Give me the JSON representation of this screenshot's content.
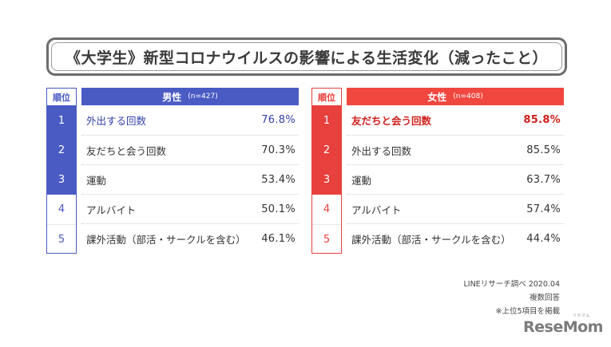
{
  "title": "《大学生》新型コロナウイルスの影響による生活変化（減ったこと）",
  "rank_header": "順位",
  "chart_data": {
    "type": "table",
    "title": "《大学生》新型コロナウイルスの影響による生活変化（減ったこと）",
    "groups": [
      {
        "name": "男性",
        "n": "(n=427)",
        "color": "#4a5bc4",
        "rows": [
          {
            "rank": "1",
            "label": "外出する回数",
            "value": 76.8,
            "display": "76.8%"
          },
          {
            "rank": "2",
            "label": "友だちと会う回数",
            "value": 70.3,
            "display": "70.3%"
          },
          {
            "rank": "3",
            "label": "運動",
            "value": 53.4,
            "display": "53.4%"
          },
          {
            "rank": "4",
            "label": "アルバイト",
            "value": 50.1,
            "display": "50.1%"
          },
          {
            "rank": "5",
            "label": "課外活動（部活・サークルを含む）",
            "value": 46.1,
            "display": "46.1%"
          }
        ]
      },
      {
        "name": "女性",
        "n": "(n=408)",
        "color": "#e8403c",
        "rows": [
          {
            "rank": "1",
            "label": "友だちと会う回数",
            "value": 85.8,
            "display": "85.8%"
          },
          {
            "rank": "2",
            "label": "外出する回数",
            "value": 85.5,
            "display": "85.5%"
          },
          {
            "rank": "3",
            "label": "運動",
            "value": 63.7,
            "display": "63.7%"
          },
          {
            "rank": "4",
            "label": "アルバイト",
            "value": 57.4,
            "display": "57.4%"
          },
          {
            "rank": "5",
            "label": "課外活動（部活・サークルを含む）",
            "value": 44.4,
            "display": "44.4%"
          }
        ]
      }
    ]
  },
  "notes": [
    "LINEリサーチ調べ 2020.04",
    "複数回答",
    "※上位5項目を掲載"
  ],
  "logo": {
    "text": "ReseMom",
    "ruby": "リセマム"
  }
}
